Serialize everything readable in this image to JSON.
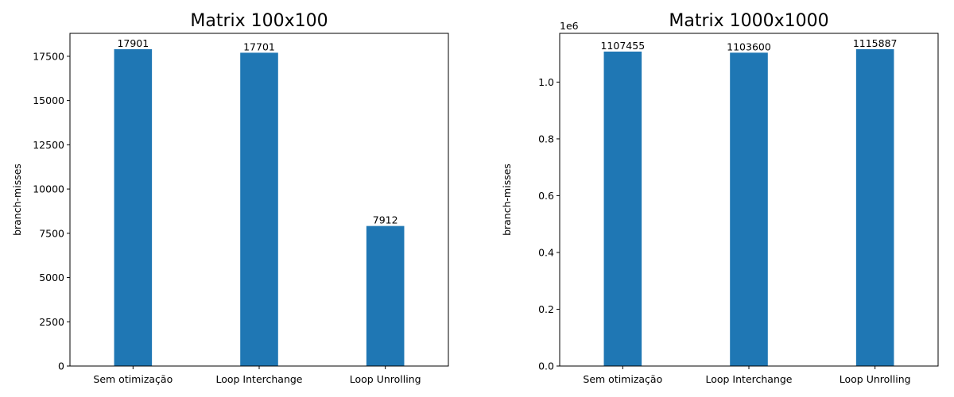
{
  "charts": [
    {
      "type": "bar",
      "title": "Matrix 100x100",
      "ylabel": "branch-misses",
      "categories": [
        "Sem otimização",
        "Loop Interchange",
        "Loop Unrolling"
      ],
      "values": [
        17901,
        17701,
        7912
      ],
      "data_labels": [
        "17901",
        "17701",
        "7912"
      ],
      "ylim": [
        0,
        18796
      ],
      "yticks": [
        0,
        2500,
        5000,
        7500,
        10000,
        12500,
        15000,
        17500
      ],
      "ytick_labels": [
        "0",
        "2500",
        "5000",
        "7500",
        "10000",
        "12500",
        "15000",
        "17500"
      ],
      "offset_label": "",
      "color": "#1f77b4"
    },
    {
      "type": "bar",
      "title": "Matrix 1000x1000",
      "ylabel": "branch-misses",
      "categories": [
        "Sem otimização",
        "Loop Interchange",
        "Loop Unrolling"
      ],
      "values": [
        1107455,
        1103600,
        1115887
      ],
      "data_labels": [
        "1107455",
        "1103600",
        "1115887"
      ],
      "ylim": [
        0,
        1171681
      ],
      "yticks": [
        0,
        200000,
        400000,
        600000,
        800000,
        1000000
      ],
      "ytick_labels": [
        "0.0",
        "0.2",
        "0.4",
        "0.6",
        "0.8",
        "1.0"
      ],
      "offset_label": "1e6",
      "color": "#1f77b4"
    }
  ]
}
